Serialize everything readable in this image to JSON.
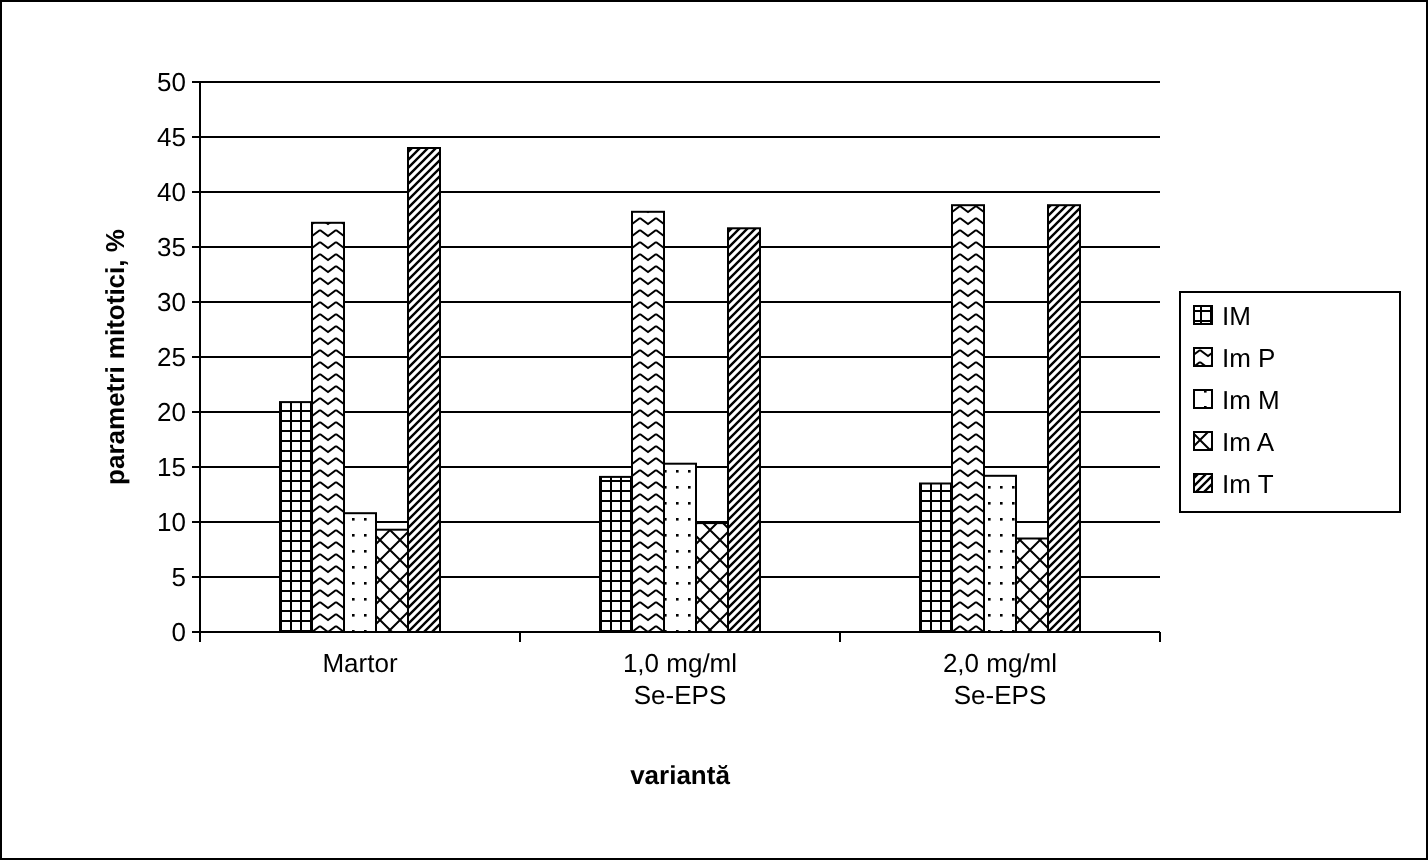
{
  "chart_data": {
    "type": "bar",
    "xlabel": "variantă",
    "ylabel": "parametri mitotici, %",
    "categories": [
      "Martor",
      "1,0 mg/ml\nSe-EPS",
      "2,0 mg/ml\nSe-EPS"
    ],
    "series": [
      {
        "name": "IM",
        "color": "#000000",
        "values": [
          20.9,
          14.1,
          13.5
        ]
      },
      {
        "name": "Im P",
        "color": "#000000",
        "values": [
          37.2,
          38.2,
          38.8
        ]
      },
      {
        "name": "Im M",
        "color": "#000000",
        "values": [
          10.8,
          15.3,
          14.2
        ]
      },
      {
        "name": "Im A",
        "color": "#000000",
        "values": [
          9.3,
          9.9,
          8.5
        ]
      },
      {
        "name": "Im T",
        "color": "#000000",
        "values": [
          44,
          36.7,
          38.8
        ]
      }
    ],
    "ylim": [
      0,
      50
    ],
    "yticks": [
      0,
      5,
      10,
      15,
      20,
      25,
      30,
      35,
      40,
      45,
      50
    ],
    "grid": "y",
    "legend": "right"
  }
}
